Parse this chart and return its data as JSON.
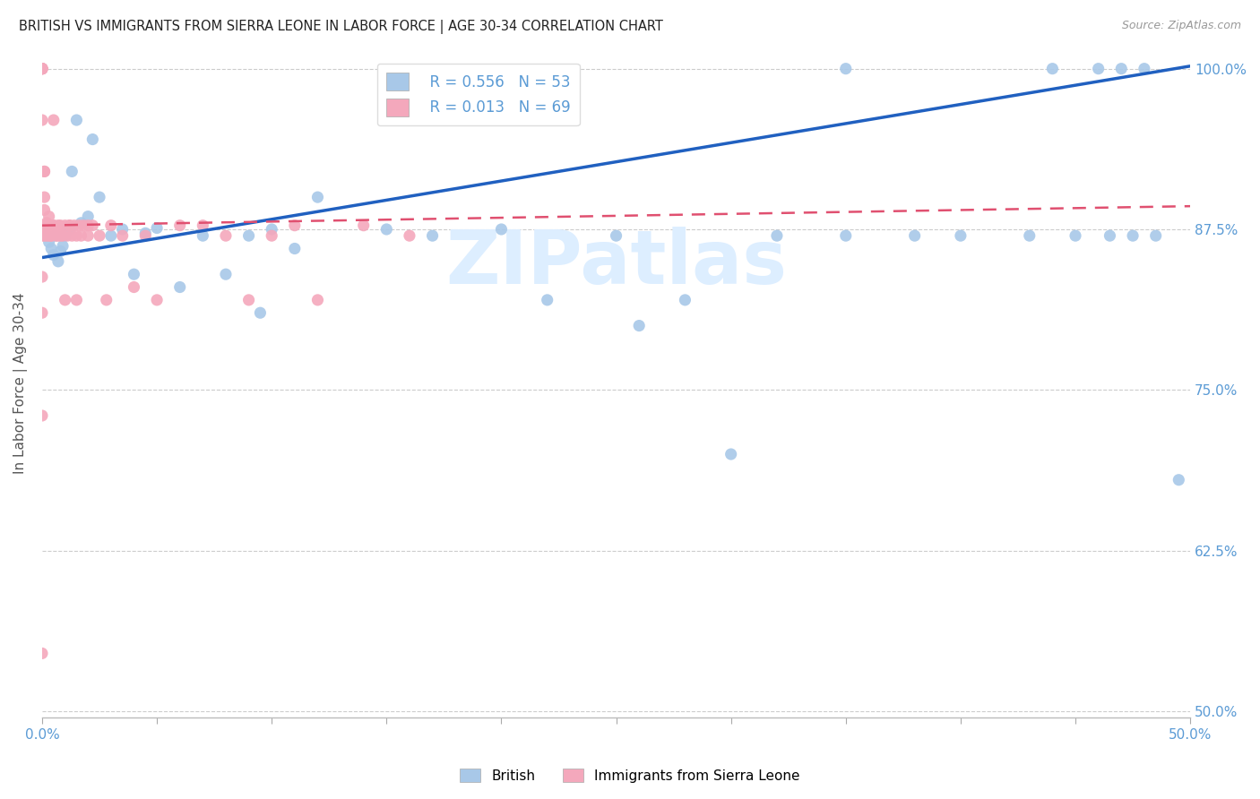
{
  "title": "BRITISH VS IMMIGRANTS FROM SIERRA LEONE IN LABOR FORCE | AGE 30-34 CORRELATION CHART",
  "source": "Source: ZipAtlas.com",
  "ylabel": "In Labor Force | Age 30-34",
  "xlim": [
    0.0,
    0.5
  ],
  "ylim": [
    0.495,
    1.015
  ],
  "xticks": [
    0.0,
    0.05,
    0.1,
    0.15,
    0.2,
    0.25,
    0.3,
    0.35,
    0.4,
    0.45,
    0.5
  ],
  "yticks": [
    0.5,
    0.625,
    0.75,
    0.875,
    1.0
  ],
  "ytick_labels": [
    "50.0%",
    "62.5%",
    "75.0%",
    "87.5%",
    "100.0%"
  ],
  "blue_R": 0.556,
  "blue_N": 53,
  "pink_R": 0.013,
  "pink_N": 69,
  "blue_color": "#a8c8e8",
  "pink_color": "#f4a8bc",
  "blue_line_color": "#2060c0",
  "pink_line_color": "#e05070",
  "axis_color": "#5b9bd5",
  "watermark_color": "#ddeeff",
  "blue_line_x0": 0.0,
  "blue_line_y0": 0.853,
  "blue_line_x1": 0.5,
  "blue_line_y1": 1.002,
  "pink_line_x0": 0.0,
  "pink_line_y0": 0.878,
  "pink_line_x1": 0.5,
  "pink_line_y1": 0.893,
  "blue_x": [
    0.002,
    0.003,
    0.004,
    0.005,
    0.006,
    0.007,
    0.008,
    0.009,
    0.01,
    0.011,
    0.012,
    0.013,
    0.015,
    0.017,
    0.02,
    0.022,
    0.025,
    0.03,
    0.035,
    0.04,
    0.045,
    0.05,
    0.06,
    0.07,
    0.08,
    0.09,
    0.095,
    0.1,
    0.11,
    0.12,
    0.15,
    0.17,
    0.2,
    0.22,
    0.25,
    0.26,
    0.28,
    0.3,
    0.32,
    0.35,
    0.38,
    0.4,
    0.43,
    0.45,
    0.465,
    0.475,
    0.485,
    0.35,
    0.44,
    0.46,
    0.47,
    0.48,
    0.495
  ],
  "blue_y": [
    0.87,
    0.865,
    0.86,
    0.855,
    0.87,
    0.85,
    0.858,
    0.862,
    0.87,
    0.875,
    0.875,
    0.92,
    0.96,
    0.88,
    0.885,
    0.945,
    0.9,
    0.87,
    0.875,
    0.84,
    0.872,
    0.876,
    0.83,
    0.87,
    0.84,
    0.87,
    0.81,
    0.875,
    0.86,
    0.9,
    0.875,
    0.87,
    0.875,
    0.82,
    0.87,
    0.8,
    0.82,
    0.7,
    0.87,
    0.87,
    0.87,
    0.87,
    0.87,
    0.87,
    0.87,
    0.87,
    0.87,
    1.0,
    1.0,
    1.0,
    1.0,
    1.0,
    0.68
  ],
  "pink_x": [
    0.0,
    0.0,
    0.0,
    0.0,
    0.0,
    0.0,
    0.0,
    0.001,
    0.001,
    0.001,
    0.001,
    0.001,
    0.002,
    0.002,
    0.002,
    0.003,
    0.003,
    0.003,
    0.004,
    0.004,
    0.005,
    0.005,
    0.006,
    0.007,
    0.007,
    0.008,
    0.009,
    0.01,
    0.011,
    0.012,
    0.013,
    0.014,
    0.015,
    0.016,
    0.017,
    0.018,
    0.02,
    0.022,
    0.025,
    0.028,
    0.03,
    0.035,
    0.04,
    0.045,
    0.05,
    0.06,
    0.07,
    0.08,
    0.09,
    0.1,
    0.11,
    0.12,
    0.14,
    0.16,
    0.01,
    0.015,
    0.02,
    0.005,
    0.008,
    0.012,
    0.003,
    0.004,
    0.002,
    0.001,
    0.0,
    0.0,
    0.0,
    0.0,
    0.0
  ],
  "pink_y": [
    1.0,
    1.0,
    1.0,
    1.0,
    1.0,
    1.0,
    0.96,
    0.92,
    0.92,
    0.9,
    0.89,
    0.878,
    0.88,
    0.875,
    0.87,
    0.885,
    0.878,
    0.87,
    0.878,
    0.87,
    0.96,
    0.878,
    0.87,
    0.878,
    0.87,
    0.878,
    0.87,
    0.878,
    0.87,
    0.878,
    0.87,
    0.878,
    0.87,
    0.878,
    0.87,
    0.878,
    0.87,
    0.878,
    0.87,
    0.82,
    0.878,
    0.87,
    0.83,
    0.87,
    0.82,
    0.878,
    0.878,
    0.87,
    0.82,
    0.87,
    0.878,
    0.82,
    0.878,
    0.87,
    0.82,
    0.82,
    0.878,
    0.878,
    0.87,
    0.878,
    0.878,
    0.87,
    0.878,
    0.87,
    0.87,
    0.838,
    0.81,
    0.73,
    0.545
  ]
}
